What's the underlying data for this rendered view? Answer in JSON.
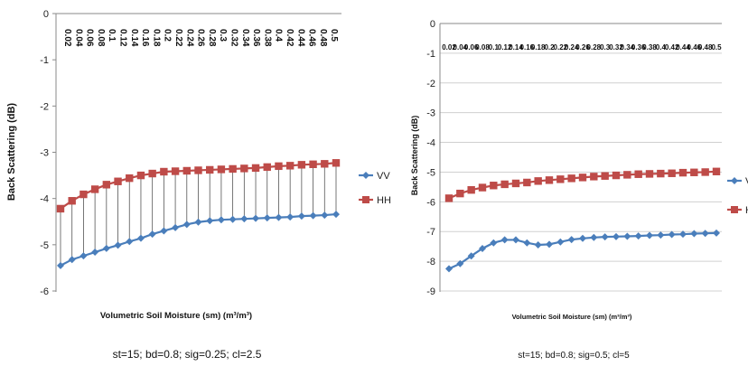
{
  "chart_data": [
    {
      "type": "line",
      "x": [
        0.02,
        0.04,
        0.06,
        0.08,
        0.1,
        0.12,
        0.14,
        0.16,
        0.18,
        0.2,
        0.22,
        0.24,
        0.26,
        0.28,
        0.3,
        0.32,
        0.34,
        0.36,
        0.38,
        0.4,
        0.42,
        0.44,
        0.46,
        0.48,
        0.5
      ],
      "x_tick_labels": [
        "0.02",
        "0.04",
        "0.06",
        "0.08",
        "0.1",
        "0.12",
        "0.14",
        "0.16",
        "0.18",
        "0.2",
        "0.22",
        "0.24",
        "0.26",
        "0.28",
        "0.3",
        "0.32",
        "0.34",
        "0.36",
        "0.38",
        "0.4",
        "0.42",
        "0.44",
        "0.46",
        "0.48",
        "0.5"
      ],
      "y_tick_labels": [
        "0",
        "-1",
        "-2",
        "-3",
        "-4",
        "-5",
        "-6"
      ],
      "ylim": [
        -6,
        0
      ],
      "xlabel": "Volumetric Soil Moisture (sm) (m³/m³)",
      "ylabel": "Back Scattering (dB)",
      "caption": "st=15; bd=0.8; sig=0.25; cl=2.5",
      "grid": false,
      "drop_lines": true,
      "legend_placement": "right",
      "series": [
        {
          "name": "VV",
          "color": "#4a7ebb",
          "marker": "diamond",
          "values": [
            -5.45,
            -5.32,
            -5.24,
            -5.16,
            -5.08,
            -5.01,
            -4.93,
            -4.86,
            -4.77,
            -4.7,
            -4.63,
            -4.56,
            -4.51,
            -4.48,
            -4.46,
            -4.45,
            -4.44,
            -4.43,
            -4.42,
            -4.41,
            -4.4,
            -4.38,
            -4.37,
            -4.36,
            -4.34
          ]
        },
        {
          "name": "HH",
          "color": "#be4b48",
          "marker": "square",
          "values": [
            -4.22,
            -4.05,
            -3.91,
            -3.8,
            -3.7,
            -3.63,
            -3.56,
            -3.5,
            -3.46,
            -3.42,
            -3.41,
            -3.4,
            -3.39,
            -3.38,
            -3.37,
            -3.36,
            -3.35,
            -3.34,
            -3.32,
            -3.3,
            -3.29,
            -3.27,
            -3.26,
            -3.25,
            -3.23
          ]
        }
      ]
    },
    {
      "type": "line",
      "x": [
        0.02,
        0.04,
        0.06,
        0.08,
        0.1,
        0.12,
        0.14,
        0.16,
        0.18,
        0.2,
        0.22,
        0.24,
        0.26,
        0.28,
        0.3,
        0.32,
        0.34,
        0.36,
        0.38,
        0.4,
        0.42,
        0.44,
        0.46,
        0.48,
        0.5
      ],
      "x_tick_labels": [
        "0.02",
        "0.04",
        "0.06",
        "0.08",
        "0.1",
        "0.12",
        "0.14",
        "0.16",
        "0.18",
        "0.2",
        "0.22",
        "0.24",
        "0.26",
        "0.28",
        "0.3",
        "0.32",
        "0.34",
        "0.36",
        "0.38",
        "0.4",
        "0.42",
        "0.44",
        "0.46",
        "0.48",
        "0.5"
      ],
      "y_tick_labels": [
        "0",
        "-1",
        "-2",
        "-3",
        "-4",
        "-5",
        "-6",
        "-7",
        "-8",
        "-9"
      ],
      "ylim": [
        -9,
        0
      ],
      "xlabel": "Volumetric Soil Moisture (sm) (m³/m³)",
      "ylabel": "Back Scattering (dB)",
      "caption": "st=15; bd=0.8; sig=0.5; cl=5",
      "grid": true,
      "drop_lines": false,
      "legend_placement": "right",
      "series": [
        {
          "name": "VV",
          "color": "#4a7ebb",
          "marker": "diamond",
          "values": [
            -8.25,
            -8.08,
            -7.82,
            -7.57,
            -7.38,
            -7.28,
            -7.28,
            -7.38,
            -7.45,
            -7.43,
            -7.35,
            -7.27,
            -7.23,
            -7.2,
            -7.18,
            -7.17,
            -7.16,
            -7.15,
            -7.13,
            -7.12,
            -7.1,
            -7.09,
            -7.07,
            -7.06,
            -7.05
          ]
        },
        {
          "name": "HH",
          "color": "#be4b48",
          "marker": "square",
          "values": [
            -5.88,
            -5.72,
            -5.6,
            -5.52,
            -5.45,
            -5.41,
            -5.38,
            -5.35,
            -5.3,
            -5.27,
            -5.24,
            -5.21,
            -5.18,
            -5.15,
            -5.13,
            -5.11,
            -5.09,
            -5.07,
            -5.06,
            -5.05,
            -5.04,
            -5.02,
            -5.01,
            -5.0,
            -4.98
          ]
        }
      ]
    }
  ]
}
